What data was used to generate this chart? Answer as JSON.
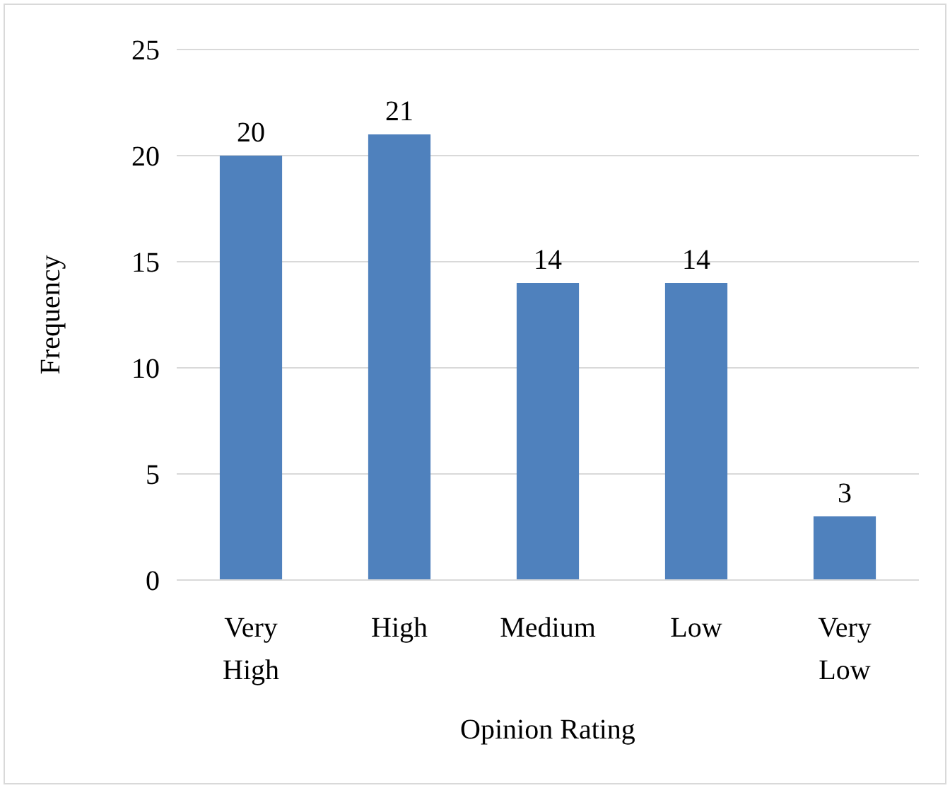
{
  "chart_data": {
    "type": "bar",
    "xlabel": "Opinion Rating",
    "ylabel": "Frequency",
    "categories": [
      "Very High",
      "High",
      "Medium",
      "Low",
      "Very Low"
    ],
    "values": [
      20,
      21,
      14,
      14,
      3
    ],
    "color": "#4f81bd",
    "ylim": [
      0,
      25
    ],
    "yticks": [
      0,
      5,
      10,
      15,
      20,
      25
    ],
    "grid": "y",
    "data_labels": true
  }
}
